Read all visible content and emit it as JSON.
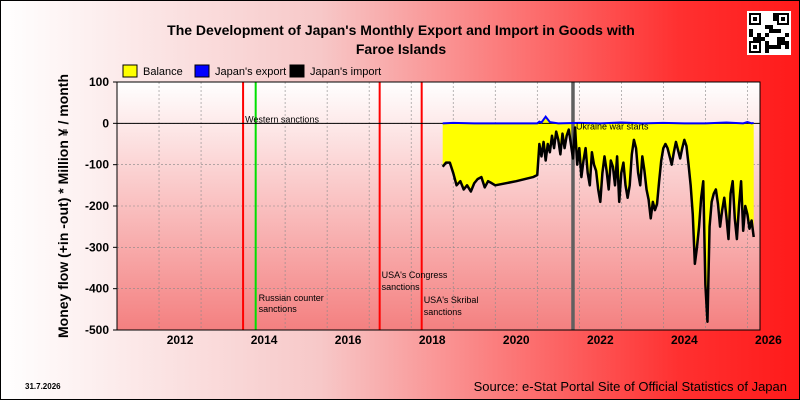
{
  "title_line1": "The Development of Japan's Monthly Export and Import in Goods with",
  "title_line2": "Faroe Islands",
  "date": "31.7.2026",
  "source": "Source: e-Stat Portal Site of Official Statistics of Japan",
  "chart_data": {
    "type": "line",
    "ylabel": "Money flow (+in -out) * Million ¥ / month",
    "xlim": [
      2011,
      2026.3
    ],
    "ylim": [
      -500,
      100
    ],
    "x_ticks": [
      2012,
      2014,
      2016,
      2018,
      2020,
      2022,
      2024,
      2026
    ],
    "y_ticks": [
      100,
      0,
      -100,
      -200,
      -300,
      -400,
      -500
    ],
    "grid": true,
    "legend_position": "top-left",
    "legend": [
      {
        "label": "Balance",
        "color": "#ffff00"
      },
      {
        "label": "Japan's export",
        "color": "#0000ff"
      },
      {
        "label": "Japan's import",
        "color": "#000000"
      }
    ],
    "events": [
      {
        "x": 2014.0,
        "label": "",
        "color": "#ff0000"
      },
      {
        "x": 2014.3,
        "label": "Russian counter sanctions",
        "color": "#00e000"
      },
      {
        "x": 2017.25,
        "label": "USA's Congress sanctions",
        "color": "#ff0000"
      },
      {
        "x": 2018.25,
        "label": "USA's Skribal sanctions",
        "color": "#ff0000"
      },
      {
        "x": 2021.85,
        "label": "Ukraine war starts",
        "color": "#606060"
      }
    ],
    "event_label_western": "Western sanctions",
    "series": [
      {
        "name": "Japan's export",
        "color": "#0000ff",
        "x": [
          2018.75,
          2019.0,
          2019.5,
          2020.0,
          2020.5,
          2021.0,
          2021.05,
          2021.1,
          2021.2,
          2021.3,
          2021.5,
          2022.0,
          2022.5,
          2023.0,
          2023.5,
          2024.0,
          2024.5,
          2025.0,
          2025.5,
          2025.9,
          2026.0,
          2026.1,
          2026.15
        ],
        "y": [
          0,
          1,
          0,
          0,
          0,
          0,
          4,
          2,
          16,
          3,
          0,
          1,
          0,
          2,
          0,
          1,
          0,
          0,
          2,
          0,
          3,
          0,
          1
        ]
      },
      {
        "name": "Japan's import",
        "color": "#000000",
        "x": [
          2018.75,
          2018.83,
          2018.92,
          2019.0,
          2019.08,
          2019.17,
          2019.25,
          2019.33,
          2019.42,
          2019.5,
          2019.58,
          2019.67,
          2019.75,
          2019.83,
          2019.92,
          2020.0,
          2020.5,
          2020.9,
          2021.0,
          2021.05,
          2021.1,
          2021.15,
          2021.2,
          2021.25,
          2021.3,
          2021.35,
          2021.4,
          2021.45,
          2021.5,
          2021.55,
          2021.6,
          2021.65,
          2021.7,
          2021.75,
          2021.8,
          2021.85,
          2021.9,
          2021.95,
          2022.0,
          2022.05,
          2022.1,
          2022.15,
          2022.2,
          2022.25,
          2022.3,
          2022.35,
          2022.4,
          2022.45,
          2022.5,
          2022.55,
          2022.6,
          2022.65,
          2022.7,
          2022.75,
          2022.8,
          2022.85,
          2022.9,
          2022.95,
          2023.0,
          2023.05,
          2023.1,
          2023.15,
          2023.2,
          2023.25,
          2023.3,
          2023.35,
          2023.4,
          2023.45,
          2023.5,
          2023.55,
          2023.6,
          2023.65,
          2023.7,
          2023.75,
          2023.8,
          2023.85,
          2023.9,
          2023.95,
          2024.0,
          2024.05,
          2024.1,
          2024.15,
          2024.2,
          2024.25,
          2024.3,
          2024.35,
          2024.4,
          2024.45,
          2024.5,
          2024.55,
          2024.6,
          2024.65,
          2024.7,
          2024.75,
          2024.8,
          2024.85,
          2024.9,
          2024.95,
          2025.0,
          2025.05,
          2025.1,
          2025.15,
          2025.2,
          2025.25,
          2025.3,
          2025.35,
          2025.4,
          2025.45,
          2025.5,
          2025.55,
          2025.6,
          2025.65,
          2025.7,
          2025.75,
          2025.8,
          2025.85,
          2025.9,
          2025.95,
          2026.0,
          2026.05,
          2026.1,
          2026.15
        ],
        "y": [
          -105,
          -95,
          -95,
          -120,
          -150,
          -140,
          -160,
          -150,
          -165,
          -145,
          -135,
          -130,
          -155,
          -140,
          -145,
          -150,
          -140,
          -130,
          -125,
          -50,
          -80,
          -45,
          -90,
          -50,
          -70,
          -30,
          -60,
          -20,
          -40,
          -75,
          -25,
          -60,
          -30,
          -15,
          -50,
          -85,
          -10,
          -100,
          -60,
          -130,
          -90,
          -60,
          -120,
          -150,
          -70,
          -100,
          -115,
          -160,
          -190,
          -120,
          -80,
          -115,
          -160,
          -90,
          -105,
          -150,
          -80,
          -190,
          -120,
          -95,
          -150,
          -180,
          -150,
          -75,
          -40,
          -60,
          -120,
          -150,
          -80,
          -115,
          -160,
          -185,
          -230,
          -190,
          -210,
          -195,
          -140,
          -90,
          -60,
          -50,
          -60,
          -80,
          -100,
          -70,
          -45,
          -65,
          -85,
          -60,
          -40,
          -55,
          -100,
          -150,
          -220,
          -340,
          -300,
          -250,
          -180,
          -140,
          -390,
          -480,
          -250,
          -190,
          -170,
          -160,
          -195,
          -250,
          -210,
          -180,
          -225,
          -280,
          -170,
          -140,
          -230,
          -280,
          -200,
          -140,
          -260,
          -200,
          -220,
          -255,
          -235,
          -275
        ]
      }
    ]
  }
}
